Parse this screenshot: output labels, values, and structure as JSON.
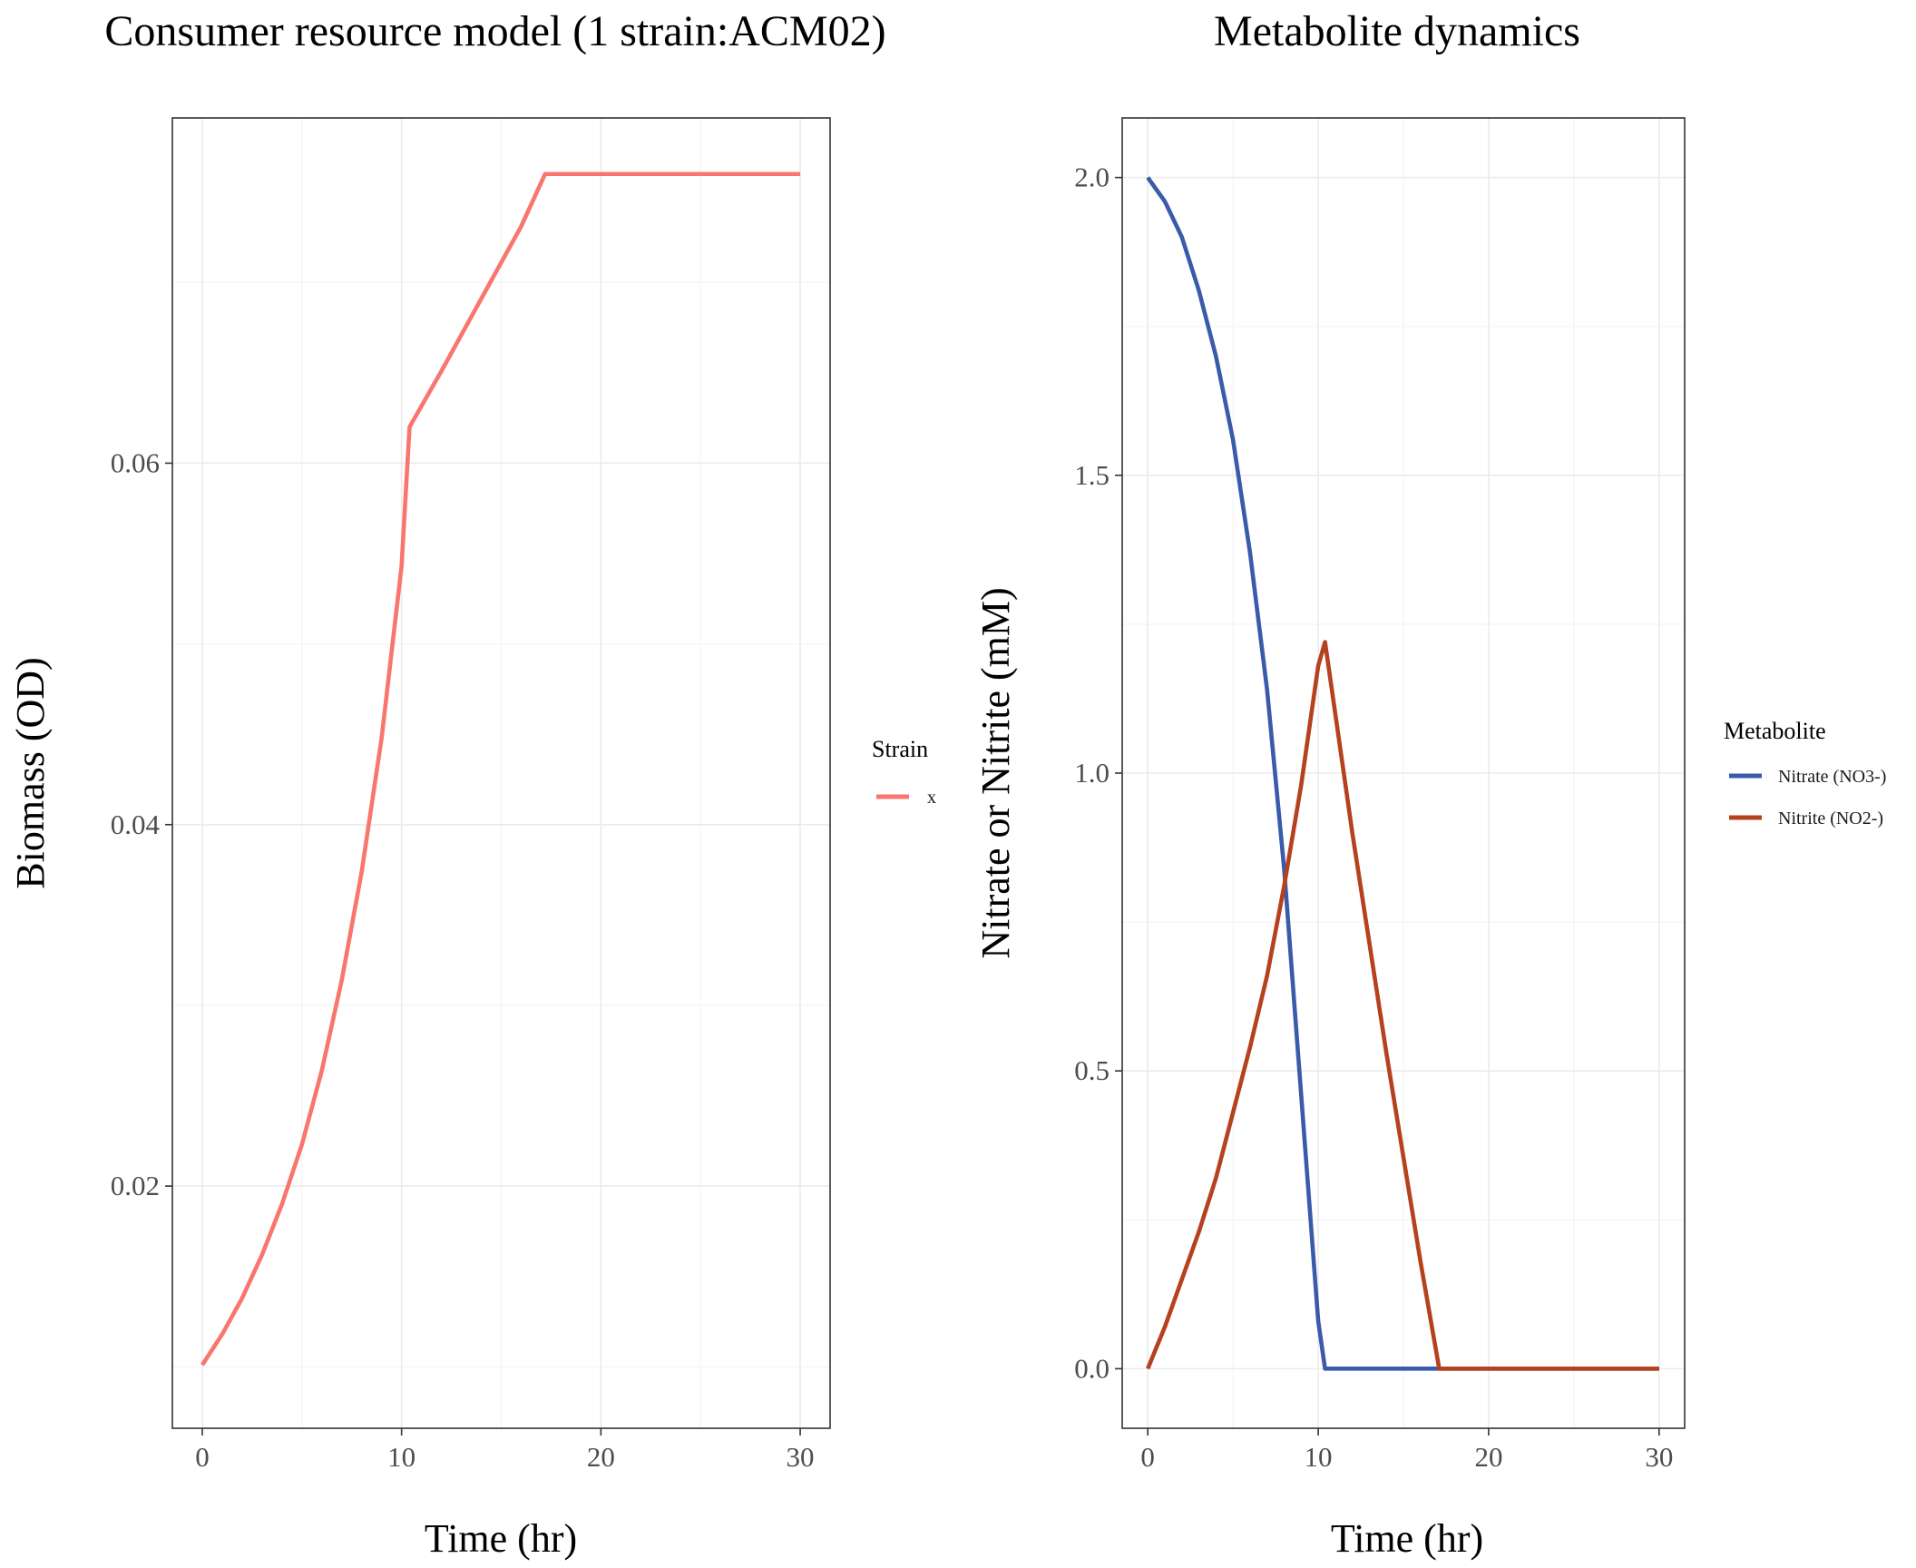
{
  "chart_data": [
    {
      "type": "line",
      "title": "Consumer resource model (1 strain:ACM02)",
      "xlabel": "Time (hr)",
      "ylabel": "Biomass (OD)",
      "xlim": [
        -1.5,
        31.5
      ],
      "ylim": [
        0.0066,
        0.0791
      ],
      "x_ticks": [
        0,
        10,
        20,
        30
      ],
      "x_tick_labels": [
        "0",
        "10",
        "20",
        "30"
      ],
      "y_ticks": [
        0.02,
        0.04,
        0.06
      ],
      "y_tick_labels": [
        "0.02",
        "0.04",
        "0.06"
      ],
      "grid": true,
      "legend": {
        "title": "Strain",
        "position": "right"
      },
      "series": [
        {
          "name": "x",
          "color": "#F8766D",
          "x": [
            0,
            1,
            2,
            3,
            4,
            5,
            6,
            7,
            8,
            9,
            10,
            10.4,
            12,
            14,
            16,
            17.2,
            20,
            25,
            30
          ],
          "y": [
            0.0101,
            0.0118,
            0.0138,
            0.0162,
            0.019,
            0.0223,
            0.0264,
            0.0314,
            0.0374,
            0.0448,
            0.0543,
            0.062,
            0.0651,
            0.0691,
            0.0731,
            0.076,
            0.076,
            0.076,
            0.076
          ]
        }
      ]
    },
    {
      "type": "line",
      "title": "Metabolite dynamics",
      "xlabel": "Time (hr)",
      "ylabel": "Nitrate or Nitrite (mM)",
      "xlim": [
        -1.5,
        31.5
      ],
      "ylim": [
        -0.1,
        2.1
      ],
      "x_ticks": [
        0,
        10,
        20,
        30
      ],
      "x_tick_labels": [
        "0",
        "10",
        "20",
        "30"
      ],
      "y_ticks": [
        0.0,
        0.5,
        1.0,
        1.5,
        2.0
      ],
      "y_tick_labels": [
        "0.0",
        "0.5",
        "1.0",
        "1.5",
        "2.0"
      ],
      "grid": true,
      "legend": {
        "title": "Metabolite",
        "position": "right"
      },
      "series": [
        {
          "name": "Nitrate (NO3-)",
          "color": "#3A5BA9",
          "x": [
            0,
            1,
            2,
            3,
            4,
            5,
            6,
            7,
            8,
            9,
            10,
            10.4,
            12,
            15,
            20,
            25,
            30
          ],
          "y": [
            2.0,
            1.96,
            1.9,
            1.81,
            1.7,
            1.56,
            1.37,
            1.14,
            0.84,
            0.46,
            0.08,
            0.0,
            0.0,
            0.0,
            0.0,
            0.0,
            0.0
          ]
        },
        {
          "name": "Nitrite (NO2-)",
          "color": "#B5411F",
          "x": [
            0,
            1,
            2,
            3,
            4,
            5,
            6,
            7,
            8,
            9,
            10,
            10.4,
            12,
            14,
            16,
            17.1,
            20,
            25,
            30
          ],
          "y": [
            0.0,
            0.07,
            0.15,
            0.23,
            0.32,
            0.43,
            0.54,
            0.66,
            0.81,
            0.98,
            1.18,
            1.22,
            0.9,
            0.53,
            0.18,
            0.0,
            0.0,
            0.0,
            0.0
          ]
        }
      ]
    }
  ]
}
